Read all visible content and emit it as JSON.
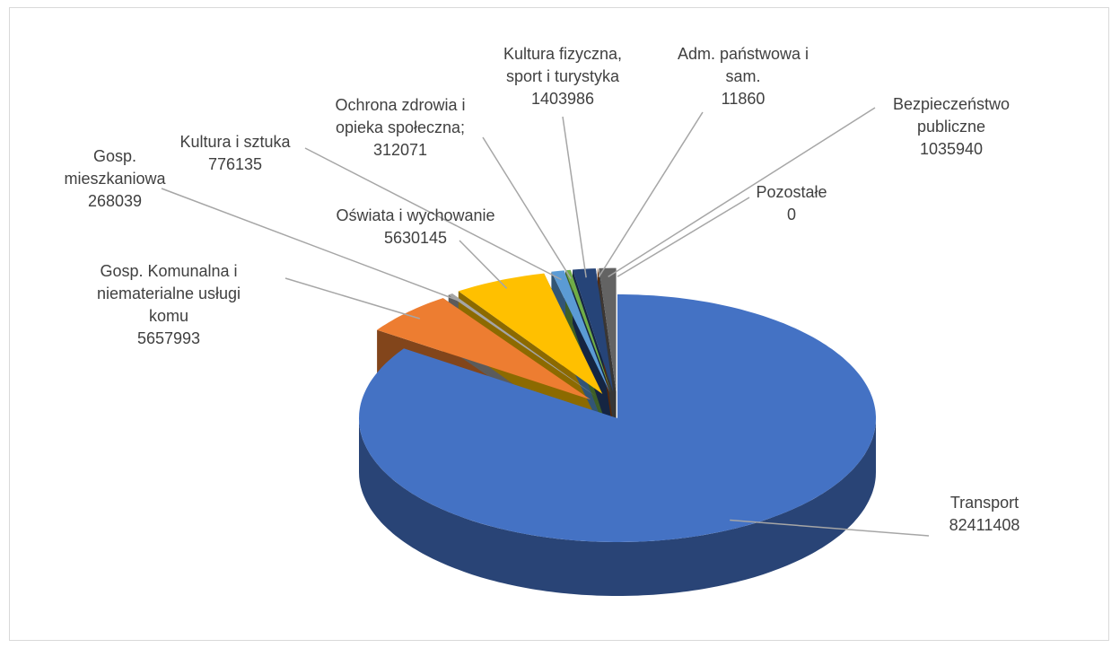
{
  "chart_data": {
    "type": "pie3d",
    "categories": [
      "Transport",
      "Gosp. Komunalna i niematerialne usługi komu",
      "Gosp. mieszkaniowa",
      "Oświata i wychowanie",
      "Kultura i sztuka",
      "Ochrona zdrowia i opieka społeczna;",
      "Kultura fizyczna, sport i turystyka",
      "Adm. państwowa i sam.",
      "Bezpieczeństwo publiczne",
      "Pozostałe"
    ],
    "values": [
      82411408,
      5657993,
      268039,
      5630145,
      776135,
      312071,
      1403986,
      11860,
      1035940,
      0
    ],
    "colors": [
      "#4472c4",
      "#ed7d31",
      "#a5a5a5",
      "#ffc000",
      "#5b9bd5",
      "#70ad47",
      "#264478",
      "#9e480e",
      "#636363",
      "#997300"
    ]
  }
}
